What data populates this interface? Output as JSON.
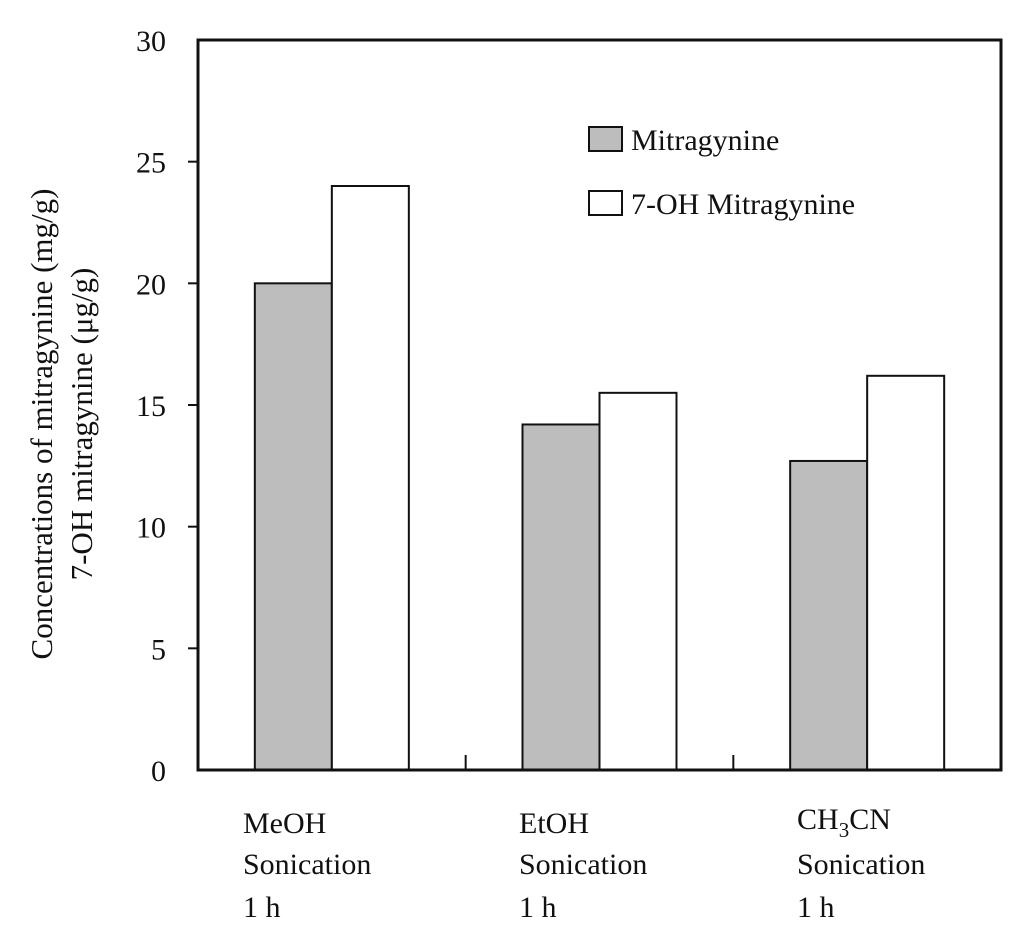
{
  "chart_data": {
    "type": "bar",
    "ylabel_lines": [
      "Concentrations of mitragynine (mg/g)",
      "7-OH mitragynine (μg/g)"
    ],
    "ylim": [
      0,
      30
    ],
    "yticks": [
      "0",
      "5",
      "10",
      "15",
      "20",
      "25",
      "30"
    ],
    "categories": [
      {
        "lines": [
          "MeOH",
          "Sonication",
          "1 h"
        ]
      },
      {
        "lines": [
          "EtOH",
          "Sonication",
          "1 h"
        ]
      },
      {
        "lines": [
          "CH3CN",
          "Sonication",
          "1 h"
        ],
        "formula": {
          "main": "CH",
          "sub": "3",
          "tail": "CN"
        }
      }
    ],
    "series": [
      {
        "name": "Mitragynine",
        "color": "#bdbdbd",
        "values": [
          20.0,
          14.2,
          12.7
        ]
      },
      {
        "name": "7-OH Mitragynine",
        "color": "#ffffff",
        "values": [
          24.0,
          15.5,
          16.2
        ]
      }
    ],
    "legend_position": "top-right"
  }
}
